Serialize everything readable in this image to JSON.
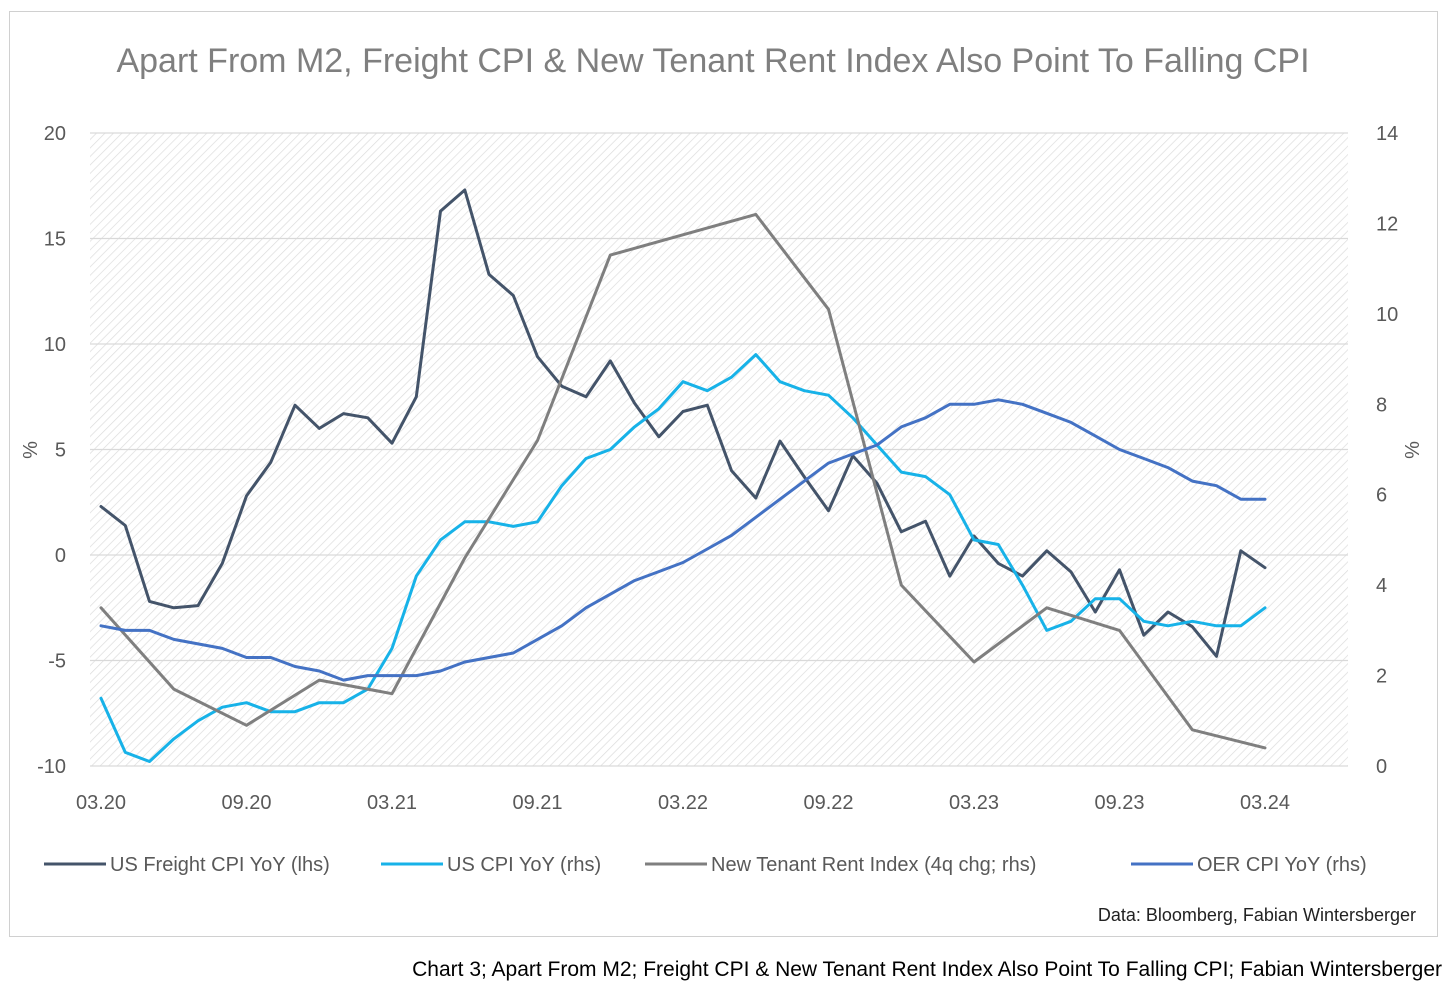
{
  "caption": "Chart 3; Apart From M2; Freight CPI & New Tenant Rent Index Also Point To Falling CPI; Fabian Wintersberger",
  "chart_data": {
    "type": "line",
    "title": "Apart From M2, Freight CPI & New Tenant Rent Index Also Point To Falling CPI",
    "ylabel_left": "%",
    "ylabel_right": "%",
    "source": "Data: Bloomberg, Fabian Wintersberger",
    "grid": true,
    "legend_position": "bottom",
    "x_tick_labels": [
      "03.20",
      "09.20",
      "03.21",
      "09.21",
      "03.22",
      "09.22",
      "03.23",
      "09.23",
      "03.24"
    ],
    "y_left": {
      "min": -10,
      "max": 20,
      "ticks": [
        "20",
        "15",
        "10",
        "5",
        "0",
        "-5",
        "-10"
      ]
    },
    "y_right": {
      "min": 0,
      "max": 14,
      "ticks": [
        "14",
        "12",
        "10",
        "8",
        "6",
        "4",
        "2",
        "0"
      ]
    },
    "series": [
      {
        "name": "US Freight CPI YoY (lhs)",
        "axis": "left",
        "color": "#44546a",
        "x": [
          0,
          1,
          2,
          3,
          4,
          5,
          6,
          7,
          8,
          9,
          10,
          11,
          12,
          13,
          14,
          15,
          16,
          17,
          18,
          19,
          20,
          21,
          22,
          23,
          24,
          25,
          26,
          27,
          28,
          29,
          30,
          31,
          32,
          33,
          34,
          35,
          36,
          37,
          38,
          39,
          40,
          41,
          42,
          43,
          44,
          45,
          46,
          47,
          48
        ],
        "values": [
          2.3,
          1.4,
          -2.2,
          -2.5,
          -2.4,
          -0.4,
          2.8,
          4.4,
          7.1,
          6.0,
          6.7,
          6.5,
          5.3,
          7.5,
          16.3,
          17.3,
          13.3,
          12.3,
          9.4,
          8.0,
          7.5,
          9.2,
          7.2,
          5.6,
          6.8,
          7.1,
          4.0,
          2.7,
          5.4,
          3.7,
          2.1,
          4.7,
          3.4,
          1.1,
          1.6,
          -1.0,
          0.9,
          -0.4,
          -1.0,
          0.2,
          -0.8,
          -2.7,
          -0.7,
          -3.8,
          -2.7,
          -3.4,
          -4.8,
          0.2,
          -0.6
        ]
      },
      {
        "name": "US CPI YoY (rhs)",
        "axis": "right",
        "color": "#17b2e8",
        "x": [
          0,
          1,
          2,
          3,
          4,
          5,
          6,
          7,
          8,
          9,
          10,
          11,
          12,
          13,
          14,
          15,
          16,
          17,
          18,
          19,
          20,
          21,
          22,
          23,
          24,
          25,
          26,
          27,
          28,
          29,
          30,
          31,
          32,
          33,
          34,
          35,
          36,
          37,
          38,
          39,
          40,
          41,
          42,
          43,
          44,
          45,
          46,
          47,
          48
        ],
        "values": [
          1.5,
          0.3,
          0.1,
          0.6,
          1.0,
          1.3,
          1.4,
          1.2,
          1.2,
          1.4,
          1.4,
          1.7,
          2.6,
          4.2,
          5.0,
          5.4,
          5.4,
          5.3,
          5.4,
          6.2,
          6.8,
          7.0,
          7.5,
          7.9,
          8.5,
          8.3,
          8.6,
          9.1,
          8.5,
          8.3,
          8.2,
          7.7,
          7.1,
          6.5,
          6.4,
          6.0,
          5.0,
          4.9,
          4.0,
          3.0,
          3.2,
          3.7,
          3.7,
          3.2,
          3.1,
          3.2,
          3.1,
          3.1,
          3.5
        ]
      },
      {
        "name": "New Tenant Rent Index (4q chg; rhs)",
        "axis": "right",
        "color": "#7f7f7f",
        "x": [
          0,
          3,
          6,
          9,
          12,
          15,
          18,
          21,
          27,
          30,
          33,
          36,
          39,
          42,
          45,
          48
        ],
        "values": [
          3.5,
          1.7,
          0.9,
          1.9,
          1.6,
          4.6,
          7.2,
          11.3,
          12.2,
          10.1,
          4.0,
          2.3,
          3.5,
          3.0,
          0.8,
          0.4
        ]
      },
      {
        "name": "OER CPI YoY (rhs)",
        "axis": "right",
        "color": "#4472c4",
        "x": [
          0,
          1,
          2,
          3,
          4,
          5,
          6,
          7,
          8,
          9,
          10,
          11,
          12,
          13,
          14,
          15,
          16,
          17,
          18,
          19,
          20,
          21,
          22,
          23,
          24,
          25,
          26,
          27,
          28,
          29,
          30,
          31,
          32,
          33,
          34,
          35,
          36,
          37,
          38,
          39,
          40,
          41,
          42,
          43,
          44,
          45,
          46,
          47,
          48
        ],
        "values": [
          3.1,
          3.0,
          3.0,
          2.8,
          2.7,
          2.6,
          2.4,
          2.4,
          2.2,
          2.1,
          1.9,
          2.0,
          2.0,
          2.0,
          2.1,
          2.3,
          2.4,
          2.5,
          2.8,
          3.1,
          3.5,
          3.8,
          4.1,
          4.3,
          4.5,
          4.8,
          5.1,
          5.5,
          5.9,
          6.3,
          6.7,
          6.9,
          7.1,
          7.5,
          7.7,
          8.0,
          8.0,
          8.1,
          8.0,
          7.8,
          7.6,
          7.3,
          7.0,
          6.8,
          6.6,
          6.3,
          6.2,
          5.9,
          5.9
        ]
      }
    ]
  }
}
